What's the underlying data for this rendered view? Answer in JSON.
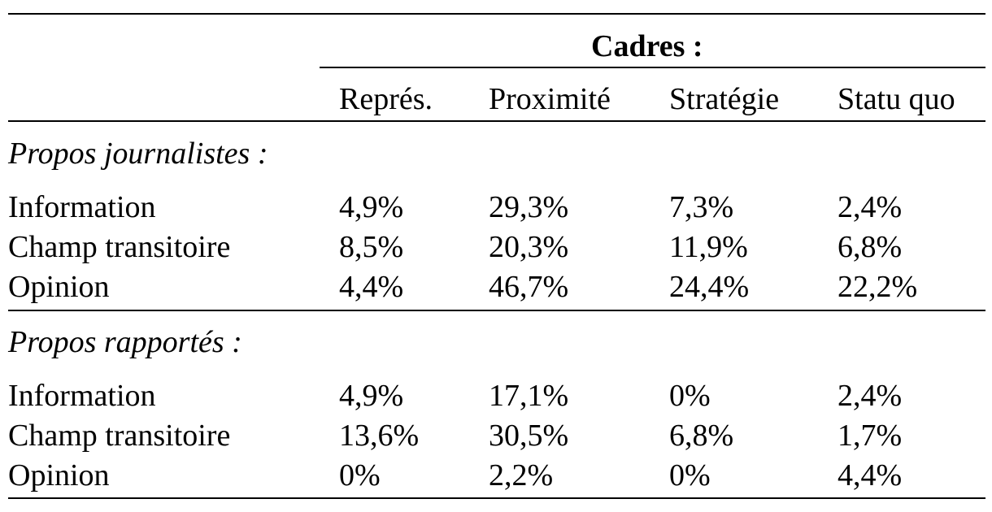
{
  "table": {
    "group_header": "Cadres :",
    "columns": [
      "Représ.",
      "Proximité",
      "Stratégie",
      "Statu quo"
    ],
    "sections": [
      {
        "title": "Propos journalistes :",
        "rows": [
          {
            "label": "Information",
            "values": [
              "4,9%",
              "29,3%",
              "7,3%",
              "2,4%"
            ]
          },
          {
            "label": "Champ transitoire",
            "values": [
              "8,5%",
              "20,3%",
              "11,9%",
              "6,8%"
            ]
          },
          {
            "label": "Opinion",
            "values": [
              "4,4%",
              "46,7%",
              "24,4%",
              "22,2%"
            ]
          }
        ]
      },
      {
        "title": "Propos rapportés :",
        "rows": [
          {
            "label": "Information",
            "values": [
              "4,9%",
              "17,1%",
              "0%",
              "2,4%"
            ]
          },
          {
            "label": "Champ transitoire",
            "values": [
              "13,6%",
              "30,5%",
              "6,8%",
              "1,7%"
            ]
          },
          {
            "label": "Opinion",
            "values": [
              "0%",
              "2,2%",
              "0%",
              "4,4%"
            ]
          }
        ]
      }
    ]
  }
}
